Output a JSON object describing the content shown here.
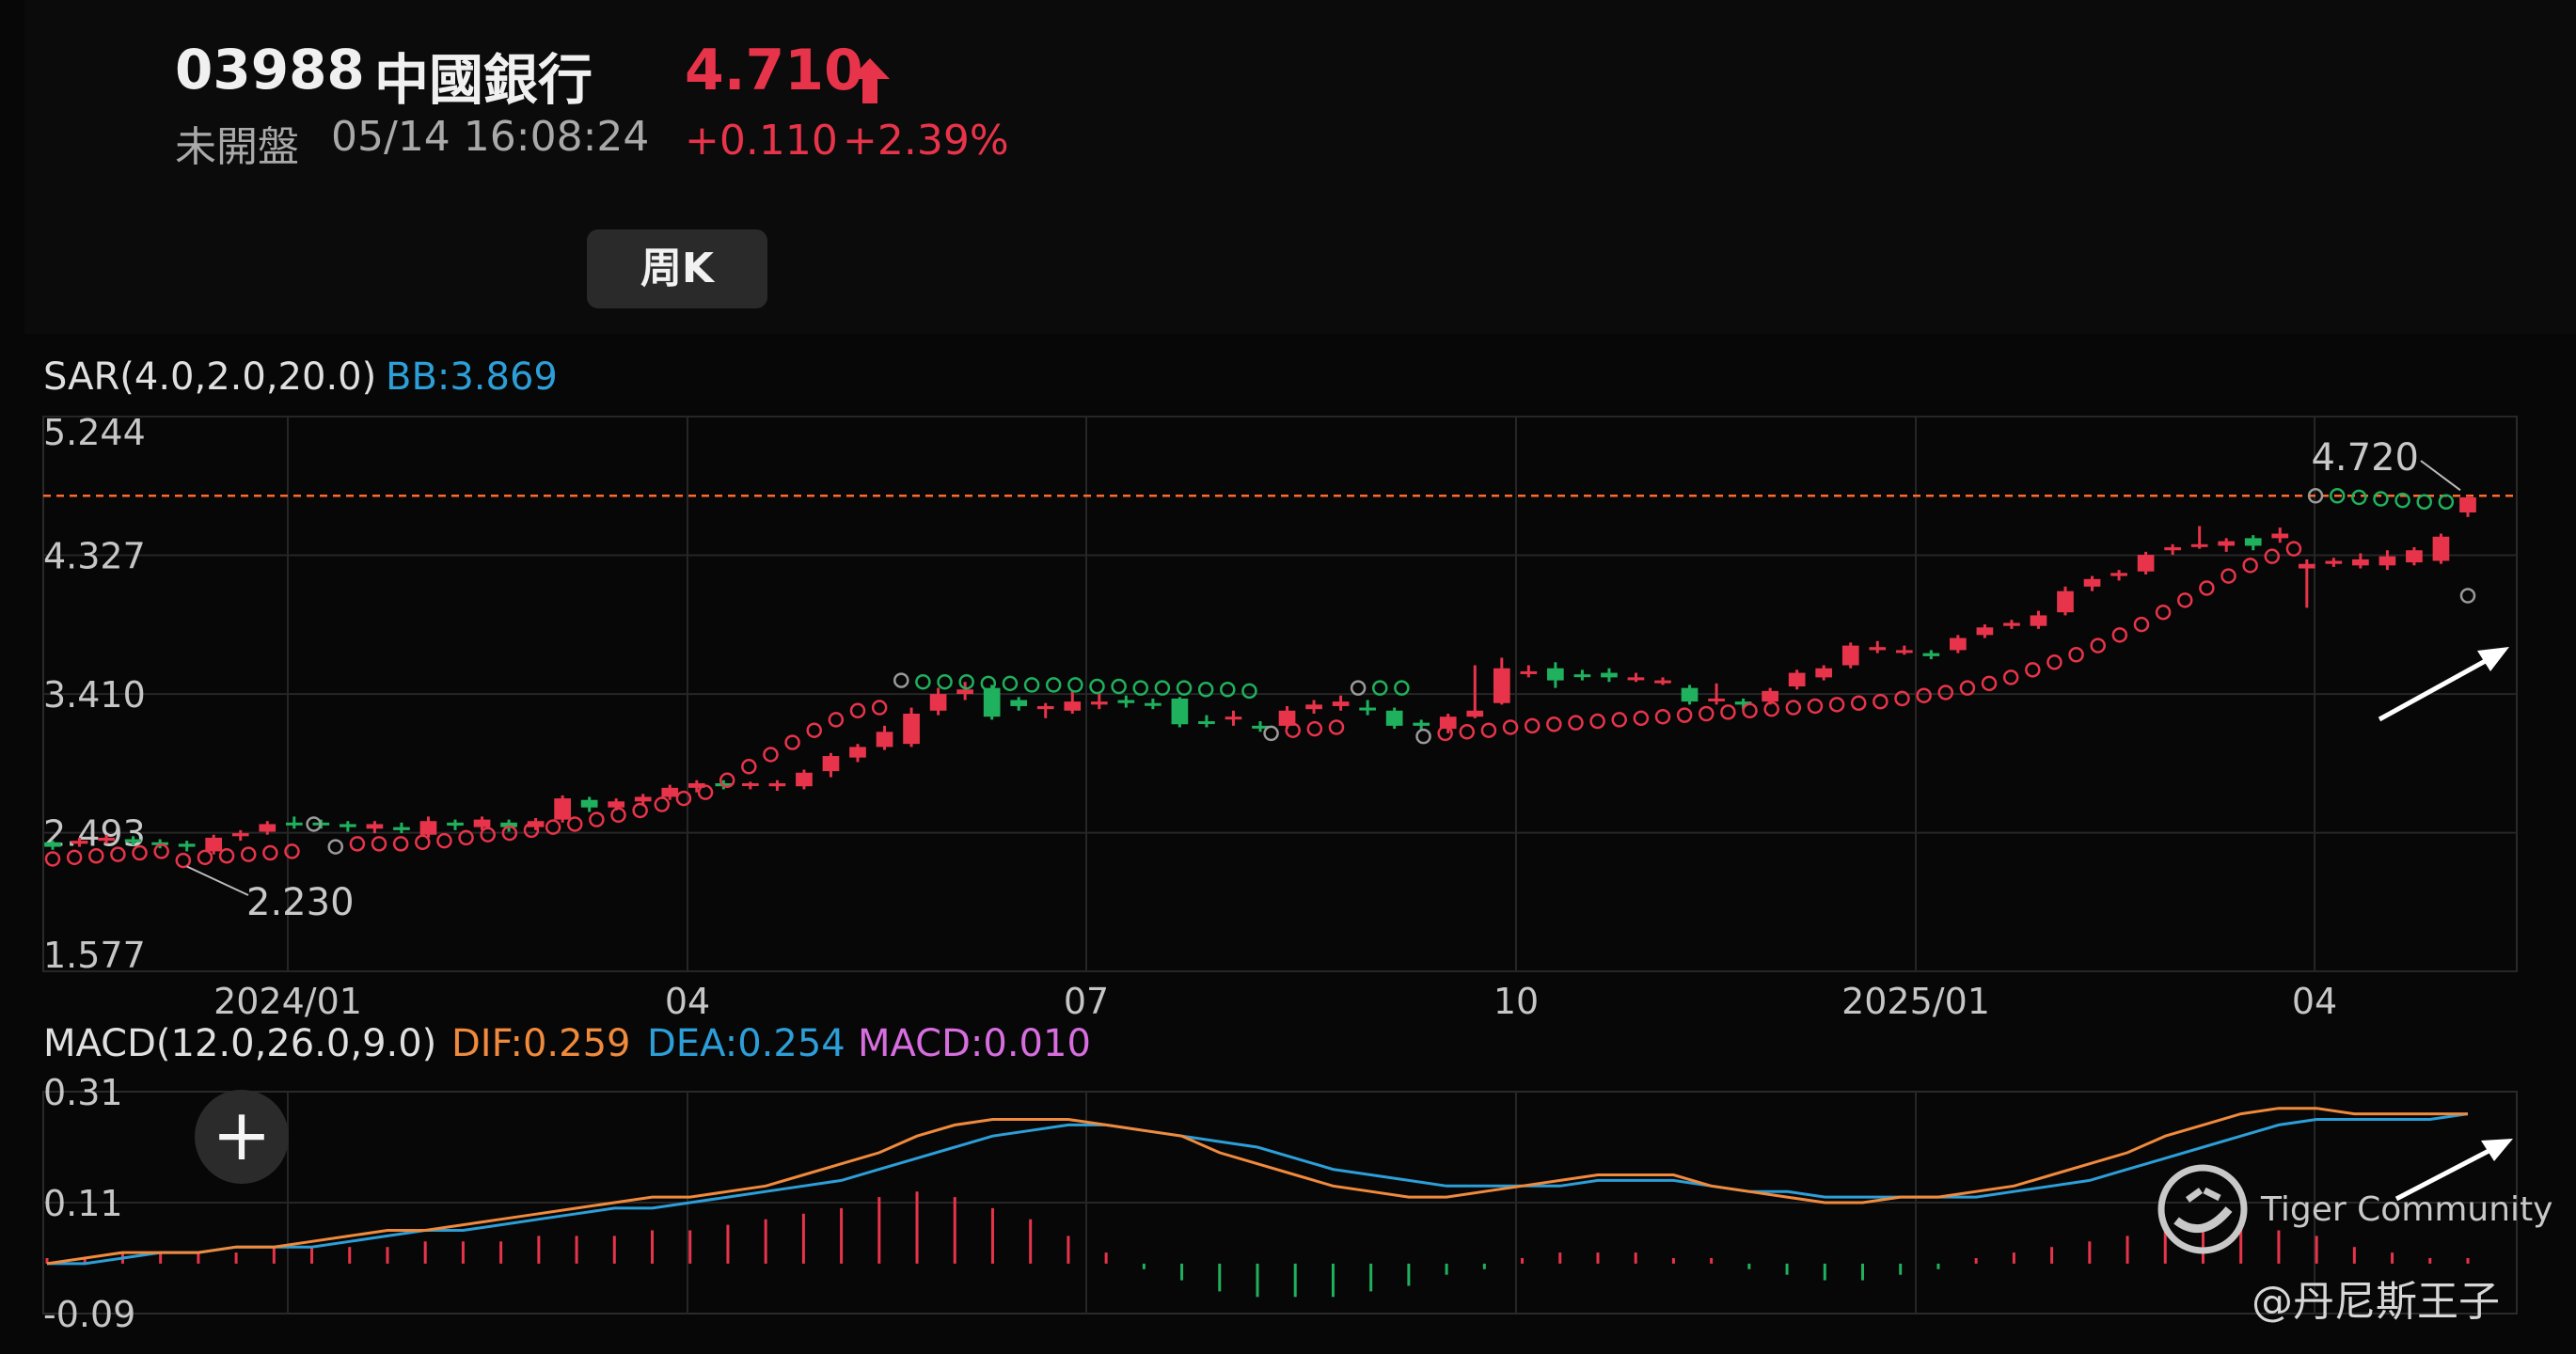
{
  "quote": {
    "code": "03988",
    "name": "中國銀行",
    "price": "4.710",
    "status": "未開盤",
    "datetime": "05/14 16:08:24",
    "change": "+0.110",
    "change_pct": "+2.39%"
  },
  "tabs": [
    {
      "label": "周K",
      "active": true
    }
  ],
  "watermark": {
    "brand": "Tiger Community",
    "author": "@丹尼斯王子"
  },
  "colors": {
    "up": "#e8344a",
    "down": "#1fb15d",
    "dif": "#f08a3c",
    "dea": "#2d9fd8",
    "macd": "#d76ddf",
    "bb": "#2d9fd8",
    "dashed": "#ff6a2a"
  },
  "chart_data": [
    {
      "type": "candlestick",
      "indicator_label": "SAR(4.0,2.0,20.0)",
      "bb_label": "BB:3.869",
      "yticks": [
        "5.244",
        "4.327",
        "3.410",
        "2.493",
        "1.577"
      ],
      "xticks": [
        "2024/01",
        "04",
        "07",
        "10",
        "2025/01",
        "04"
      ],
      "ylim": [
        1.577,
        5.244
      ],
      "annotations": {
        "high": "4.720",
        "low": "2.230",
        "current_line": 4.72
      },
      "candles": [
        [
          2.43,
          2.4,
          2.44,
          2.38
        ],
        [
          2.42,
          2.44,
          2.46,
          2.4
        ],
        [
          2.44,
          2.46,
          2.48,
          2.42
        ],
        [
          2.45,
          2.43,
          2.47,
          2.41
        ],
        [
          2.43,
          2.42,
          2.45,
          2.39
        ],
        [
          2.42,
          2.4,
          2.44,
          2.37
        ],
        [
          2.37,
          2.46,
          2.48,
          2.35
        ],
        [
          2.47,
          2.49,
          2.51,
          2.44
        ],
        [
          2.5,
          2.55,
          2.57,
          2.48
        ],
        [
          2.56,
          2.55,
          2.6,
          2.52
        ],
        [
          2.56,
          2.55,
          2.58,
          2.52
        ],
        [
          2.55,
          2.53,
          2.57,
          2.5
        ],
        [
          2.52,
          2.55,
          2.57,
          2.49
        ],
        [
          2.53,
          2.51,
          2.56,
          2.49
        ],
        [
          2.48,
          2.57,
          2.6,
          2.46
        ],
        [
          2.56,
          2.54,
          2.58,
          2.51
        ],
        [
          2.53,
          2.58,
          2.6,
          2.51
        ],
        [
          2.56,
          2.53,
          2.58,
          2.5
        ],
        [
          2.53,
          2.57,
          2.59,
          2.51
        ],
        [
          2.58,
          2.72,
          2.74,
          2.56
        ],
        [
          2.71,
          2.66,
          2.73,
          2.63
        ],
        [
          2.66,
          2.7,
          2.72,
          2.64
        ],
        [
          2.7,
          2.73,
          2.75,
          2.67
        ],
        [
          2.73,
          2.79,
          2.81,
          2.71
        ],
        [
          2.79,
          2.82,
          2.84,
          2.76
        ],
        [
          2.82,
          2.8,
          2.84,
          2.78
        ],
        [
          2.81,
          2.82,
          2.83,
          2.78
        ],
        [
          2.8,
          2.82,
          2.84,
          2.77
        ],
        [
          2.8,
          2.89,
          2.91,
          2.78
        ],
        [
          2.9,
          3.0,
          3.02,
          2.86
        ],
        [
          2.99,
          3.06,
          3.08,
          2.96
        ],
        [
          3.06,
          3.16,
          3.2,
          3.04
        ],
        [
          3.08,
          3.28,
          3.32,
          3.06
        ],
        [
          3.3,
          3.41,
          3.45,
          3.27
        ],
        [
          3.41,
          3.44,
          3.49,
          3.37
        ],
        [
          3.45,
          3.26,
          3.47,
          3.24
        ],
        [
          3.37,
          3.33,
          3.39,
          3.3
        ],
        [
          3.31,
          3.33,
          3.35,
          3.25
        ],
        [
          3.3,
          3.36,
          3.43,
          3.28
        ],
        [
          3.34,
          3.36,
          3.42,
          3.31
        ],
        [
          3.37,
          3.35,
          3.4,
          3.32
        ],
        [
          3.35,
          3.34,
          3.38,
          3.31
        ],
        [
          3.38,
          3.21,
          3.39,
          3.19
        ],
        [
          3.23,
          3.22,
          3.27,
          3.19
        ],
        [
          3.25,
          3.26,
          3.3,
          3.2
        ],
        [
          3.2,
          3.19,
          3.23,
          3.16
        ],
        [
          3.2,
          3.3,
          3.33,
          3.18
        ],
        [
          3.31,
          3.34,
          3.37,
          3.28
        ],
        [
          3.33,
          3.36,
          3.4,
          3.3
        ],
        [
          3.32,
          3.31,
          3.37,
          3.27
        ],
        [
          3.3,
          3.2,
          3.32,
          3.18
        ],
        [
          3.22,
          3.2,
          3.24,
          3.17
        ],
        [
          3.18,
          3.26,
          3.28,
          3.15
        ],
        [
          3.26,
          3.3,
          3.6,
          3.25
        ],
        [
          3.35,
          3.58,
          3.65,
          3.34
        ],
        [
          3.56,
          3.56,
          3.6,
          3.52
        ],
        [
          3.58,
          3.5,
          3.62,
          3.45
        ],
        [
          3.54,
          3.53,
          3.57,
          3.5
        ],
        [
          3.55,
          3.52,
          3.58,
          3.49
        ],
        [
          3.52,
          3.52,
          3.55,
          3.49
        ],
        [
          3.5,
          3.5,
          3.52,
          3.47
        ],
        [
          3.45,
          3.36,
          3.47,
          3.34
        ],
        [
          3.38,
          3.38,
          3.48,
          3.34
        ],
        [
          3.36,
          3.34,
          3.38,
          3.31
        ],
        [
          3.36,
          3.43,
          3.45,
          3.34
        ],
        [
          3.46,
          3.55,
          3.57,
          3.44
        ],
        [
          3.52,
          3.58,
          3.6,
          3.5
        ],
        [
          3.6,
          3.73,
          3.75,
          3.58
        ],
        [
          3.7,
          3.72,
          3.76,
          3.68
        ],
        [
          3.7,
          3.7,
          3.73,
          3.67
        ],
        [
          3.68,
          3.66,
          3.7,
          3.64
        ],
        [
          3.7,
          3.78,
          3.8,
          3.68
        ],
        [
          3.8,
          3.85,
          3.87,
          3.78
        ],
        [
          3.86,
          3.88,
          3.9,
          3.84
        ],
        [
          3.86,
          3.93,
          3.96,
          3.84
        ],
        [
          3.95,
          4.09,
          4.12,
          3.93
        ],
        [
          4.12,
          4.17,
          4.19,
          4.09
        ],
        [
          4.19,
          4.21,
          4.23,
          4.16
        ],
        [
          4.22,
          4.33,
          4.35,
          4.2
        ],
        [
          4.36,
          4.38,
          4.4,
          4.33
        ],
        [
          4.4,
          4.4,
          4.52,
          4.37
        ],
        [
          4.39,
          4.42,
          4.44,
          4.35
        ],
        [
          4.44,
          4.39,
          4.46,
          4.36
        ],
        [
          4.44,
          4.47,
          4.51,
          4.41
        ],
        [
          4.24,
          4.27,
          4.3,
          3.98
        ],
        [
          4.27,
          4.29,
          4.31,
          4.25
        ],
        [
          4.26,
          4.3,
          4.34,
          4.24
        ],
        [
          4.26,
          4.32,
          4.36,
          4.23
        ],
        [
          4.28,
          4.36,
          4.38,
          4.26
        ],
        [
          4.29,
          4.45,
          4.47,
          4.27
        ],
        [
          4.61,
          4.71,
          4.72,
          4.58
        ]
      ],
      "sar": [
        [
          2.32,
          "up"
        ],
        [
          2.33,
          "up"
        ],
        [
          2.34,
          "up"
        ],
        [
          2.35,
          "up"
        ],
        [
          2.36,
          "up"
        ],
        [
          2.37,
          "up"
        ],
        [
          2.31,
          "up"
        ],
        [
          2.33,
          "up"
        ],
        [
          2.34,
          "up"
        ],
        [
          2.35,
          "up"
        ],
        [
          2.36,
          "up"
        ],
        [
          2.37,
          "up"
        ],
        [
          2.55,
          "flip"
        ],
        [
          2.4,
          "flip"
        ],
        [
          2.42,
          "up"
        ],
        [
          2.42,
          "up"
        ],
        [
          2.42,
          "up"
        ],
        [
          2.43,
          "up"
        ],
        [
          2.44,
          "up"
        ],
        [
          2.46,
          "up"
        ],
        [
          2.48,
          "up"
        ],
        [
          2.49,
          "up"
        ],
        [
          2.51,
          "up"
        ],
        [
          2.53,
          "up"
        ],
        [
          2.55,
          "up"
        ],
        [
          2.58,
          "up"
        ],
        [
          2.61,
          "up"
        ],
        [
          2.64,
          "up"
        ],
        [
          2.68,
          "up"
        ],
        [
          2.72,
          "up"
        ],
        [
          2.76,
          "up"
        ],
        [
          2.84,
          "up"
        ],
        [
          2.93,
          "up"
        ],
        [
          3.01,
          "up"
        ],
        [
          3.09,
          "up"
        ],
        [
          3.17,
          "up"
        ],
        [
          3.24,
          "up"
        ],
        [
          3.3,
          "up"
        ],
        [
          3.32,
          "up"
        ],
        [
          3.5,
          "flip"
        ],
        [
          3.49,
          "down"
        ],
        [
          3.49,
          "down"
        ],
        [
          3.49,
          "down"
        ],
        [
          3.48,
          "down"
        ],
        [
          3.48,
          "down"
        ],
        [
          3.47,
          "down"
        ],
        [
          3.47,
          "down"
        ],
        [
          3.47,
          "down"
        ],
        [
          3.46,
          "down"
        ],
        [
          3.46,
          "down"
        ],
        [
          3.45,
          "down"
        ],
        [
          3.45,
          "down"
        ],
        [
          3.45,
          "down"
        ],
        [
          3.44,
          "down"
        ],
        [
          3.44,
          "down"
        ],
        [
          3.43,
          "down"
        ],
        [
          3.15,
          "flip"
        ],
        [
          3.17,
          "up"
        ],
        [
          3.18,
          "up"
        ],
        [
          3.19,
          "up"
        ],
        [
          3.45,
          "flip"
        ],
        [
          3.45,
          "down"
        ],
        [
          3.45,
          "down"
        ],
        [
          3.13,
          "flip"
        ],
        [
          3.15,
          "up"
        ],
        [
          3.16,
          "up"
        ],
        [
          3.17,
          "up"
        ],
        [
          3.19,
          "up"
        ],
        [
          3.2,
          "up"
        ],
        [
          3.21,
          "up"
        ],
        [
          3.22,
          "up"
        ],
        [
          3.23,
          "up"
        ],
        [
          3.24,
          "up"
        ],
        [
          3.25,
          "up"
        ],
        [
          3.26,
          "up"
        ],
        [
          3.27,
          "up"
        ],
        [
          3.28,
          "up"
        ],
        [
          3.29,
          "up"
        ],
        [
          3.3,
          "up"
        ],
        [
          3.31,
          "up"
        ],
        [
          3.32,
          "up"
        ],
        [
          3.33,
          "up"
        ],
        [
          3.34,
          "up"
        ],
        [
          3.35,
          "up"
        ],
        [
          3.36,
          "up"
        ],
        [
          3.38,
          "up"
        ],
        [
          3.4,
          "up"
        ],
        [
          3.42,
          "up"
        ],
        [
          3.45,
          "up"
        ],
        [
          3.48,
          "up"
        ],
        [
          3.52,
          "up"
        ],
        [
          3.57,
          "up"
        ],
        [
          3.62,
          "up"
        ],
        [
          3.67,
          "up"
        ],
        [
          3.73,
          "up"
        ],
        [
          3.8,
          "up"
        ],
        [
          3.87,
          "up"
        ],
        [
          3.95,
          "up"
        ],
        [
          4.03,
          "up"
        ],
        [
          4.11,
          "up"
        ],
        [
          4.19,
          "up"
        ],
        [
          4.26,
          "up"
        ],
        [
          4.32,
          "up"
        ],
        [
          4.37,
          "up"
        ],
        [
          4.72,
          "flip"
        ],
        [
          4.72,
          "down"
        ],
        [
          4.71,
          "down"
        ],
        [
          4.7,
          "down"
        ],
        [
          4.69,
          "down"
        ],
        [
          4.68,
          "down"
        ],
        [
          4.68,
          "down"
        ],
        [
          4.06,
          "flip"
        ]
      ]
    },
    {
      "type": "macd",
      "indicator_label": "MACD(12.0,26.0,9.0)",
      "dif_label": "DIF:0.259",
      "dea_label": "DEA:0.254",
      "macd_label": "MACD:0.010",
      "yticks": [
        "0.31",
        "0.11",
        "-0.09"
      ],
      "ylim": [
        -0.09,
        0.31
      ],
      "dif": [
        0.0,
        0.01,
        0.02,
        0.02,
        0.02,
        0.03,
        0.03,
        0.04,
        0.05,
        0.06,
        0.06,
        0.07,
        0.08,
        0.09,
        0.1,
        0.11,
        0.12,
        0.12,
        0.13,
        0.14,
        0.16,
        0.18,
        0.2,
        0.23,
        0.25,
        0.26,
        0.26,
        0.26,
        0.25,
        0.24,
        0.23,
        0.2,
        0.18,
        0.16,
        0.14,
        0.13,
        0.12,
        0.12,
        0.13,
        0.14,
        0.15,
        0.16,
        0.16,
        0.16,
        0.14,
        0.13,
        0.12,
        0.11,
        0.11,
        0.12,
        0.12,
        0.13,
        0.14,
        0.16,
        0.18,
        0.2,
        0.23,
        0.25,
        0.27,
        0.28,
        0.28,
        0.27,
        0.27,
        0.27,
        0.27
      ],
      "dea": [
        0.0,
        0.0,
        0.01,
        0.02,
        0.02,
        0.03,
        0.03,
        0.03,
        0.04,
        0.05,
        0.06,
        0.06,
        0.07,
        0.08,
        0.09,
        0.1,
        0.1,
        0.11,
        0.12,
        0.13,
        0.14,
        0.15,
        0.17,
        0.19,
        0.21,
        0.23,
        0.24,
        0.25,
        0.25,
        0.24,
        0.23,
        0.22,
        0.21,
        0.19,
        0.17,
        0.16,
        0.15,
        0.14,
        0.14,
        0.14,
        0.14,
        0.15,
        0.15,
        0.15,
        0.14,
        0.13,
        0.13,
        0.12,
        0.12,
        0.12,
        0.12,
        0.12,
        0.13,
        0.14,
        0.15,
        0.17,
        0.19,
        0.21,
        0.23,
        0.25,
        0.26,
        0.26,
        0.26,
        0.26,
        0.27
      ],
      "hist": [
        0.01,
        0.01,
        0.02,
        0.02,
        0.02,
        0.02,
        0.03,
        0.03,
        0.03,
        0.03,
        0.04,
        0.04,
        0.04,
        0.05,
        0.05,
        0.05,
        0.06,
        0.06,
        0.07,
        0.08,
        0.09,
        0.1,
        0.12,
        0.13,
        0.12,
        0.1,
        0.08,
        0.05,
        0.02,
        -0.01,
        -0.03,
        -0.05,
        -0.06,
        -0.06,
        -0.06,
        -0.05,
        -0.04,
        -0.02,
        -0.01,
        0.01,
        0.02,
        0.02,
        0.02,
        0.01,
        0.01,
        -0.01,
        -0.02,
        -0.03,
        -0.03,
        -0.02,
        -0.01,
        0.01,
        0.02,
        0.03,
        0.04,
        0.05,
        0.06,
        0.07,
        0.07,
        0.06,
        0.05,
        0.03,
        0.02,
        0.01,
        0.01
      ]
    }
  ]
}
